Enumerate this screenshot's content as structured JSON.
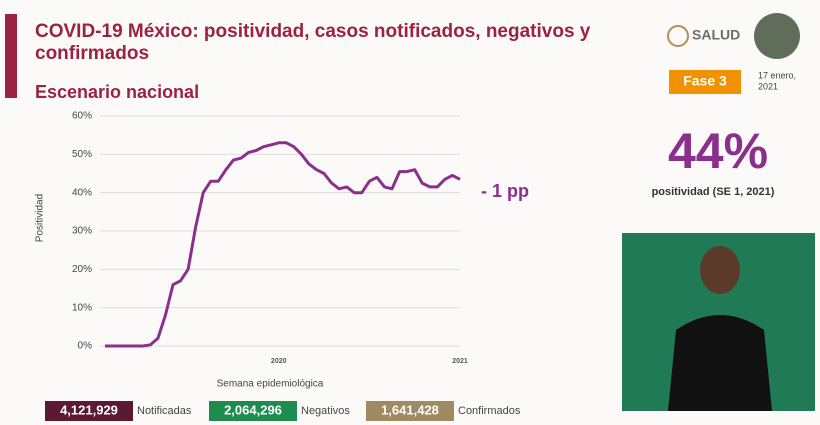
{
  "header": {
    "title_line1": "COVID-19 México: positividad, casos notificados, negativos y",
    "title_line2": "confirmados",
    "subtitle": "Escenario nacional",
    "logo": "SALUD",
    "phase": "Fase 3",
    "date_line1": "17 enero,",
    "date_line2": "2021"
  },
  "kpi": {
    "value": "44%",
    "label": "positividad (SE 1, 2021)"
  },
  "chart_data": {
    "type": "line",
    "y_label": "Positividad",
    "x_label": "Semana epidemiológica",
    "annotation": "- 1 pp",
    "color": "#8b2f8c",
    "grid": true,
    "categories": [
      null,
      null,
      null,
      null,
      null,
      null,
      null,
      null,
      null,
      null,
      null,
      null,
      null,
      null,
      null,
      null,
      null,
      null,
      null,
      null,
      null,
      null,
      null,
      "2020",
      null,
      null,
      null,
      null,
      null,
      null,
      null,
      null,
      null,
      null,
      null,
      null,
      null,
      null,
      null,
      null,
      null,
      null,
      null,
      null,
      null,
      null,
      null,
      "2021"
    ],
    "values": [
      0,
      0,
      0,
      0,
      0,
      0,
      0.3,
      2,
      8,
      16,
      17,
      20,
      31,
      40,
      43,
      43,
      46,
      48.5,
      49,
      50.5,
      51,
      52,
      52.5,
      53,
      53,
      52,
      50,
      47.5,
      46,
      45,
      42.5,
      41,
      41.5,
      40,
      40,
      43,
      44,
      41.5,
      41,
      45.5,
      45.5,
      46,
      42.5,
      41.5,
      41.5,
      43.5,
      44.5,
      43.5
    ],
    "ylim": [
      0,
      60
    ],
    "yticks": [
      {
        "value": 0,
        "label": "0%"
      },
      {
        "value": 10,
        "label": "10%"
      },
      {
        "value": 20,
        "label": "20%"
      },
      {
        "value": 30,
        "label": "30%"
      },
      {
        "value": 40,
        "label": "40%"
      },
      {
        "value": 50,
        "label": "50%"
      },
      {
        "value": 60,
        "label": "60%"
      }
    ]
  },
  "totals": [
    {
      "value": "4,121,929",
      "label": "Notificadas"
    },
    {
      "value": "2,064,296",
      "label": "Negativos"
    },
    {
      "value": "1,641,428",
      "label": "Confirmados"
    }
  ]
}
